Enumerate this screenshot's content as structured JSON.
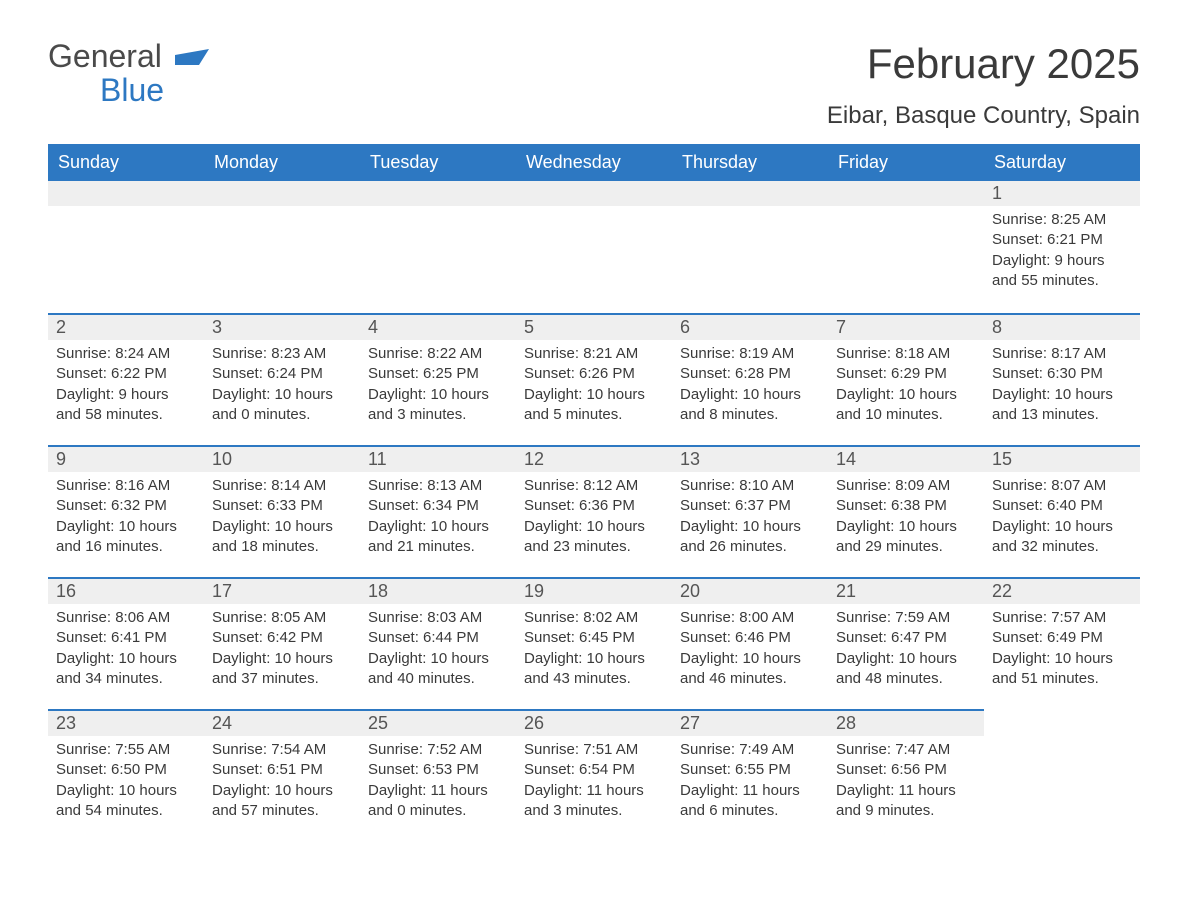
{
  "logo": {
    "word1": "General",
    "word2": "Blue",
    "mark_color": "#2d78c2"
  },
  "title": "February 2025",
  "location": "Eibar, Basque Country, Spain",
  "colors": {
    "header_bg": "#2d78c2",
    "header_text": "#ffffff",
    "daynum_bg": "#efefef",
    "daynum_border": "#2d78c2",
    "body_text": "#3a3a3a",
    "page_bg": "#ffffff"
  },
  "fonts": {
    "title_size": 42,
    "location_size": 24,
    "dayheader_size": 18,
    "body_size": 15
  },
  "labels": {
    "sunrise": "Sunrise",
    "sunset": "Sunset",
    "daylight": "Daylight"
  },
  "day_headers": [
    "Sunday",
    "Monday",
    "Tuesday",
    "Wednesday",
    "Thursday",
    "Friday",
    "Saturday"
  ],
  "weeks": [
    [
      null,
      null,
      null,
      null,
      null,
      null,
      {
        "n": 1,
        "sunrise": "8:25 AM",
        "sunset": "6:21 PM",
        "daylight": "9 hours and 55 minutes."
      }
    ],
    [
      {
        "n": 2,
        "sunrise": "8:24 AM",
        "sunset": "6:22 PM",
        "daylight": "9 hours and 58 minutes."
      },
      {
        "n": 3,
        "sunrise": "8:23 AM",
        "sunset": "6:24 PM",
        "daylight": "10 hours and 0 minutes."
      },
      {
        "n": 4,
        "sunrise": "8:22 AM",
        "sunset": "6:25 PM",
        "daylight": "10 hours and 3 minutes."
      },
      {
        "n": 5,
        "sunrise": "8:21 AM",
        "sunset": "6:26 PM",
        "daylight": "10 hours and 5 minutes."
      },
      {
        "n": 6,
        "sunrise": "8:19 AM",
        "sunset": "6:28 PM",
        "daylight": "10 hours and 8 minutes."
      },
      {
        "n": 7,
        "sunrise": "8:18 AM",
        "sunset": "6:29 PM",
        "daylight": "10 hours and 10 minutes."
      },
      {
        "n": 8,
        "sunrise": "8:17 AM",
        "sunset": "6:30 PM",
        "daylight": "10 hours and 13 minutes."
      }
    ],
    [
      {
        "n": 9,
        "sunrise": "8:16 AM",
        "sunset": "6:32 PM",
        "daylight": "10 hours and 16 minutes."
      },
      {
        "n": 10,
        "sunrise": "8:14 AM",
        "sunset": "6:33 PM",
        "daylight": "10 hours and 18 minutes."
      },
      {
        "n": 11,
        "sunrise": "8:13 AM",
        "sunset": "6:34 PM",
        "daylight": "10 hours and 21 minutes."
      },
      {
        "n": 12,
        "sunrise": "8:12 AM",
        "sunset": "6:36 PM",
        "daylight": "10 hours and 23 minutes."
      },
      {
        "n": 13,
        "sunrise": "8:10 AM",
        "sunset": "6:37 PM",
        "daylight": "10 hours and 26 minutes."
      },
      {
        "n": 14,
        "sunrise": "8:09 AM",
        "sunset": "6:38 PM",
        "daylight": "10 hours and 29 minutes."
      },
      {
        "n": 15,
        "sunrise": "8:07 AM",
        "sunset": "6:40 PM",
        "daylight": "10 hours and 32 minutes."
      }
    ],
    [
      {
        "n": 16,
        "sunrise": "8:06 AM",
        "sunset": "6:41 PM",
        "daylight": "10 hours and 34 minutes."
      },
      {
        "n": 17,
        "sunrise": "8:05 AM",
        "sunset": "6:42 PM",
        "daylight": "10 hours and 37 minutes."
      },
      {
        "n": 18,
        "sunrise": "8:03 AM",
        "sunset": "6:44 PM",
        "daylight": "10 hours and 40 minutes."
      },
      {
        "n": 19,
        "sunrise": "8:02 AM",
        "sunset": "6:45 PM",
        "daylight": "10 hours and 43 minutes."
      },
      {
        "n": 20,
        "sunrise": "8:00 AM",
        "sunset": "6:46 PM",
        "daylight": "10 hours and 46 minutes."
      },
      {
        "n": 21,
        "sunrise": "7:59 AM",
        "sunset": "6:47 PM",
        "daylight": "10 hours and 48 minutes."
      },
      {
        "n": 22,
        "sunrise": "7:57 AM",
        "sunset": "6:49 PM",
        "daylight": "10 hours and 51 minutes."
      }
    ],
    [
      {
        "n": 23,
        "sunrise": "7:55 AM",
        "sunset": "6:50 PM",
        "daylight": "10 hours and 54 minutes."
      },
      {
        "n": 24,
        "sunrise": "7:54 AM",
        "sunset": "6:51 PM",
        "daylight": "10 hours and 57 minutes."
      },
      {
        "n": 25,
        "sunrise": "7:52 AM",
        "sunset": "6:53 PM",
        "daylight": "11 hours and 0 minutes."
      },
      {
        "n": 26,
        "sunrise": "7:51 AM",
        "sunset": "6:54 PM",
        "daylight": "11 hours and 3 minutes."
      },
      {
        "n": 27,
        "sunrise": "7:49 AM",
        "sunset": "6:55 PM",
        "daylight": "11 hours and 6 minutes."
      },
      {
        "n": 28,
        "sunrise": "7:47 AM",
        "sunset": "6:56 PM",
        "daylight": "11 hours and 9 minutes."
      },
      null
    ]
  ]
}
